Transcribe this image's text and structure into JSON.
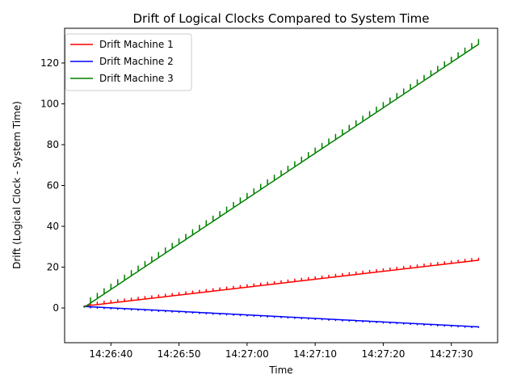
{
  "chart_data": {
    "type": "line",
    "title": "Drift of Logical Clocks Compared to System Time",
    "xlabel": "Time",
    "ylabel": "Drift (Logical Clock - System Time)",
    "x_start": "14:26:36",
    "x_end": "14:27:34",
    "xlim": [
      "14:26:33.2",
      "14:27:36.8"
    ],
    "ylim": [
      -17,
      137
    ],
    "x_ticks": [
      "14:26:40",
      "14:26:50",
      "14:27:00",
      "14:27:10",
      "14:27:20",
      "14:27:30"
    ],
    "y_ticks": [
      0,
      20,
      40,
      60,
      80,
      100,
      120
    ],
    "grid": false,
    "legend_position": "top-left",
    "series": [
      {
        "name": "Drift Machine 1",
        "color": "#ff0000",
        "start": 1.5,
        "end": 24,
        "sawtooth": 1.2
      },
      {
        "name": "Drift Machine 2",
        "color": "#0000ff",
        "start": 0.5,
        "end": -9.5,
        "sawtooth": 0.5
      },
      {
        "name": "Drift Machine 3",
        "color": "#008000",
        "start": 1.5,
        "end": 130.5,
        "sawtooth": 2.5
      }
    ]
  }
}
